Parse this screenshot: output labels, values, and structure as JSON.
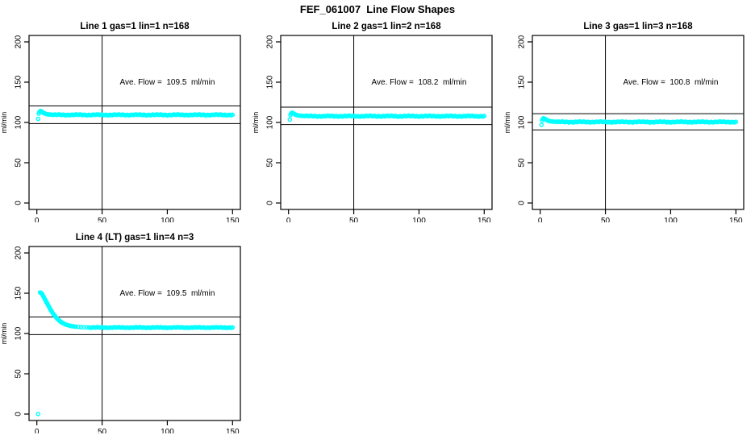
{
  "title": "FEF_061007  Line Flow Shapes",
  "colors": {
    "marker": "#00FFFF",
    "axis": "#000000",
    "background": "#FFFFFF",
    "text": "#000000"
  },
  "chart_data": [
    {
      "type": "scatter",
      "title": "Line 1 gas=1 lin=1 n=168",
      "annotation": "Ave. Flow =  109.5  ml/min",
      "ave_flow_ml_min": 109.5,
      "ylabel": "ml/min",
      "xlabel": "",
      "xticks": [
        0,
        50,
        100,
        150
      ],
      "yticks": [
        0,
        50,
        100,
        150,
        200
      ],
      "xlim": [
        -6,
        156
      ],
      "ylim": [
        -8,
        208
      ],
      "vline_x": 50,
      "hlines": [
        120.5,
        98.6
      ],
      "marker": "open-circle",
      "grid": false,
      "points": [
        [
          1,
          104.5
        ],
        [
          1.5,
          111
        ],
        [
          2,
          113
        ],
        [
          2.5,
          114
        ],
        [
          3,
          114.2
        ],
        [
          3.5,
          113.8
        ],
        [
          4,
          113.2
        ],
        [
          4.5,
          112.6
        ],
        [
          5,
          112
        ],
        [
          5.5,
          111.5
        ],
        [
          6,
          111.2
        ],
        [
          6.5,
          110.9
        ],
        [
          7,
          110.6
        ],
        [
          7.5,
          110.4
        ],
        [
          8,
          110.2
        ],
        [
          8.5,
          110.1
        ],
        [
          9,
          110
        ],
        [
          9.5,
          109.9
        ],
        [
          10,
          109.8
        ],
        [
          11,
          109.7
        ],
        [
          12,
          109.6
        ]
      ],
      "steady": {
        "from": 13,
        "to": 150,
        "step": 1,
        "value": 109.4,
        "jitter": 0.9
      },
      "outliers": []
    },
    {
      "type": "scatter",
      "title": "Line 2 gas=1 lin=2 n=168",
      "annotation": "Ave. Flow =  108.2  ml/min",
      "ave_flow_ml_min": 108.2,
      "ylabel": "ml/min",
      "xlabel": "",
      "xticks": [
        0,
        50,
        100,
        150
      ],
      "yticks": [
        0,
        50,
        100,
        150,
        200
      ],
      "xlim": [
        -6,
        156
      ],
      "ylim": [
        -8,
        208
      ],
      "vline_x": 50,
      "hlines": [
        119.0,
        97.4
      ],
      "marker": "open-circle",
      "grid": false,
      "points": [
        [
          1,
          103.5
        ],
        [
          1.5,
          109
        ],
        [
          2,
          111
        ],
        [
          2.5,
          112
        ],
        [
          3,
          112
        ],
        [
          3.5,
          111.5
        ],
        [
          4,
          111
        ],
        [
          4.5,
          110.5
        ],
        [
          5,
          110
        ],
        [
          5.5,
          109.6
        ],
        [
          6,
          109.3
        ],
        [
          6.5,
          109
        ],
        [
          7,
          108.8
        ],
        [
          7.5,
          108.6
        ],
        [
          8,
          108.5
        ],
        [
          9,
          108.3
        ],
        [
          10,
          108.2
        ],
        [
          11,
          108.1
        ],
        [
          12,
          108
        ]
      ],
      "steady": {
        "from": 13,
        "to": 150,
        "step": 1,
        "value": 107.8,
        "jitter": 0.9
      },
      "outliers": []
    },
    {
      "type": "scatter",
      "title": "Line 3 gas=1 lin=3 n=168",
      "annotation": "Ave. Flow =  100.8  ml/min",
      "ave_flow_ml_min": 100.8,
      "ylabel": "ml/min",
      "xlabel": "",
      "xticks": [
        0,
        50,
        100,
        150
      ],
      "yticks": [
        0,
        50,
        100,
        150,
        200
      ],
      "xlim": [
        -6,
        156
      ],
      "ylim": [
        -8,
        208
      ],
      "vline_x": 50,
      "hlines": [
        110.9,
        90.7
      ],
      "marker": "open-circle",
      "grid": false,
      "points": [
        [
          1,
          97
        ],
        [
          1.5,
          102.5
        ],
        [
          2,
          104.5
        ],
        [
          2.5,
          105.2
        ],
        [
          3,
          105
        ],
        [
          3.5,
          104.5
        ],
        [
          4,
          104
        ],
        [
          4.5,
          103.4
        ],
        [
          5,
          102.9
        ],
        [
          5.5,
          102.5
        ],
        [
          6,
          102.2
        ],
        [
          6.5,
          101.9
        ],
        [
          7,
          101.7
        ],
        [
          7.5,
          101.5
        ],
        [
          8,
          101.4
        ],
        [
          9,
          101.2
        ],
        [
          10,
          101.1
        ],
        [
          11,
          101
        ],
        [
          12,
          100.9
        ]
      ],
      "steady": {
        "from": 13,
        "to": 150,
        "step": 1,
        "value": 100.6,
        "jitter": 0.9
      },
      "outliers": []
    },
    {
      "type": "scatter",
      "title": "Line 4 (LT) gas=1 lin=4 n=3",
      "annotation": "Ave. Flow =  109.5  ml/min",
      "ave_flow_ml_min": 109.5,
      "ylabel": "ml/min",
      "xlabel": "",
      "xticks": [
        0,
        50,
        100,
        150
      ],
      "yticks": [
        0,
        50,
        100,
        150,
        200
      ],
      "xlim": [
        -6,
        156
      ],
      "ylim": [
        -8,
        208
      ],
      "vline_x": 50,
      "hlines": [
        120.5,
        98.6
      ],
      "marker": "open-circle",
      "grid": false,
      "points": [
        [
          2.5,
          151
        ],
        [
          3,
          150.5
        ],
        [
          3.5,
          150
        ],
        [
          4,
          149
        ],
        [
          4.5,
          147.5
        ],
        [
          5,
          146
        ],
        [
          5.5,
          144.5
        ],
        [
          6,
          143
        ],
        [
          6.5,
          141.5
        ],
        [
          7,
          140
        ],
        [
          7.5,
          138.5
        ],
        [
          8,
          137
        ],
        [
          8.5,
          135.5
        ],
        [
          9,
          134
        ],
        [
          9.5,
          132.5
        ],
        [
          10,
          131
        ],
        [
          10.5,
          129.5
        ],
        [
          11,
          128.3
        ],
        [
          11.5,
          127
        ],
        [
          12,
          125.8
        ],
        [
          12.5,
          124.6
        ],
        [
          13,
          123.5
        ],
        [
          13.5,
          122.4
        ],
        [
          14,
          121.4
        ],
        [
          14.5,
          120.4
        ],
        [
          15,
          119.5
        ],
        [
          15.5,
          118.6
        ],
        [
          16,
          117.8
        ],
        [
          16.5,
          117
        ],
        [
          17,
          116.3
        ],
        [
          17.5,
          115.6
        ],
        [
          18,
          115
        ],
        [
          18.5,
          114.4
        ],
        [
          19,
          113.8
        ],
        [
          19.5,
          113.3
        ],
        [
          20,
          112.8
        ],
        [
          21,
          112
        ],
        [
          22,
          111.3
        ],
        [
          23,
          110.7
        ],
        [
          24,
          110.2
        ],
        [
          25,
          109.8
        ],
        [
          26,
          109.4
        ],
        [
          27,
          109.1
        ],
        [
          28,
          108.8
        ],
        [
          29,
          108.6
        ],
        [
          30,
          108.4
        ],
        [
          32,
          108.1
        ],
        [
          34,
          107.9
        ],
        [
          36,
          107.7
        ],
        [
          38,
          107.6
        ],
        [
          40,
          107.5
        ]
      ],
      "steady": {
        "from": 41,
        "to": 150,
        "step": 1,
        "value": 107.4,
        "jitter": 0.7
      },
      "outliers": [
        [
          1,
          0
        ]
      ]
    }
  ]
}
